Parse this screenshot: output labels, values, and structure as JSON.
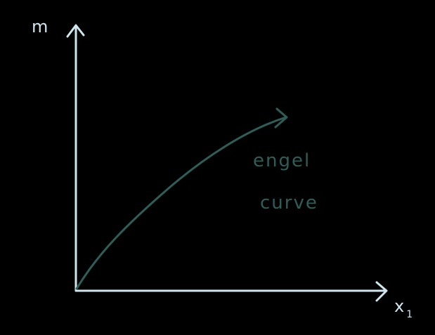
{
  "colors": {
    "background": "#000000",
    "axis": "#cfe6ee",
    "curve": "#2e5e57"
  },
  "y_axis_label": "m",
  "x_axis_label": "x",
  "x_axis_subscript": "1",
  "curve_label_line1": "engel",
  "curve_label_line2": "curve"
}
